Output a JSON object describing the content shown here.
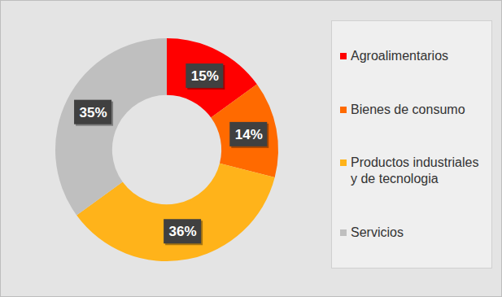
{
  "chart_data": {
    "type": "donut",
    "categories": [
      "Agroalimentarios",
      "Bienes de consumo",
      "Productos industriales y de tecnologia",
      "Servicios"
    ],
    "values": [
      15,
      14,
      36,
      35
    ],
    "value_labels": [
      "15%",
      "14%",
      "36%",
      "35%"
    ],
    "colors": [
      "#ff0000",
      "#ff6a00",
      "#ffb31a",
      "#bfbfbf"
    ],
    "data_labels": true,
    "legend": "right"
  }
}
